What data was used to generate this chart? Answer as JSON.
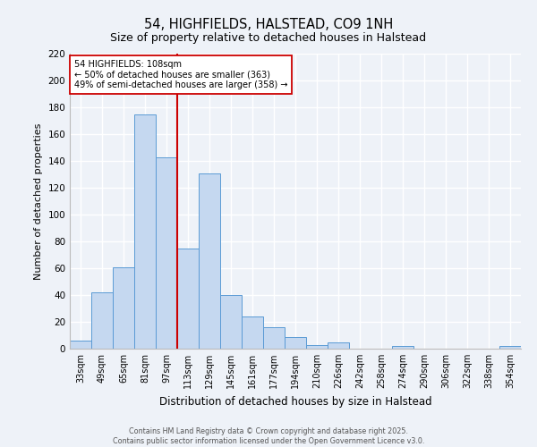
{
  "title": "54, HIGHFIELDS, HALSTEAD, CO9 1NH",
  "subtitle": "Size of property relative to detached houses in Halstead",
  "xlabel": "Distribution of detached houses by size in Halstead",
  "ylabel": "Number of detached properties",
  "bar_labels": [
    "33sqm",
    "49sqm",
    "65sqm",
    "81sqm",
    "97sqm",
    "113sqm",
    "129sqm",
    "145sqm",
    "161sqm",
    "177sqm",
    "194sqm",
    "210sqm",
    "226sqm",
    "242sqm",
    "258sqm",
    "274sqm",
    "290sqm",
    "306sqm",
    "322sqm",
    "338sqm",
    "354sqm"
  ],
  "bar_values": [
    6,
    42,
    61,
    175,
    143,
    75,
    131,
    40,
    24,
    16,
    9,
    3,
    5,
    0,
    0,
    2,
    0,
    0,
    0,
    0,
    2
  ],
  "bar_color": "#c5d8f0",
  "bar_edge_color": "#5b9bd5",
  "vline_x": 4.5,
  "vline_color": "#cc0000",
  "annotation_title": "54 HIGHFIELDS: 108sqm",
  "annotation_line1": "← 50% of detached houses are smaller (363)",
  "annotation_line2": "49% of semi-detached houses are larger (358) →",
  "annotation_box_color": "#ffffff",
  "annotation_box_edge": "#cc0000",
  "ylim": [
    0,
    220
  ],
  "yticks": [
    0,
    20,
    40,
    60,
    80,
    100,
    120,
    140,
    160,
    180,
    200,
    220
  ],
  "footer_line1": "Contains HM Land Registry data © Crown copyright and database right 2025.",
  "footer_line2": "Contains public sector information licensed under the Open Government Licence v3.0.",
  "bg_color": "#eef2f8",
  "grid_color": "#ffffff"
}
